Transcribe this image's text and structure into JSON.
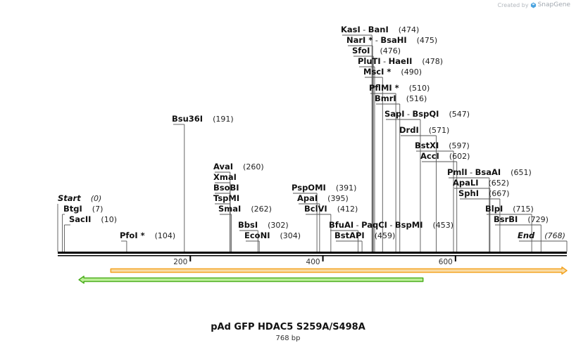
{
  "credit": {
    "prefix": "Created by",
    "brand": "SnapGene"
  },
  "plasmid": {
    "name": "pAd GFP HDAC5 S259A/S498A",
    "length_label": "768 bp",
    "length": 768
  },
  "axis": {
    "ticks": [
      {
        "value": 200,
        "label": "200"
      },
      {
        "value": 400,
        "label": "400"
      },
      {
        "value": 600,
        "label": "600"
      }
    ]
  },
  "features": [
    {
      "name": "orange-feature",
      "start": 80,
      "end": 768,
      "direction": "forward",
      "color": "#f3a320",
      "fill": "#f9dca7"
    },
    {
      "name": "green-feature",
      "start": 32,
      "end": 551,
      "direction": "reverse",
      "color": "#4cae1e",
      "fill": "#bff09a"
    }
  ],
  "sites": [
    {
      "names": [
        "Start"
      ],
      "pos": "(0)",
      "bp": 0,
      "row": 0,
      "italic": true
    },
    {
      "names": [
        "BtgI"
      ],
      "pos": "(7)",
      "bp": 7,
      "row": 1
    },
    {
      "names": [
        "SacII"
      ],
      "pos": "(10)",
      "bp": 10,
      "row": 2
    },
    {
      "names": [
        "PfoI *"
      ],
      "pos": "(104)",
      "bp": 104,
      "row": 3
    },
    {
      "names": [
        "Bsu36I"
      ],
      "pos": "(191)",
      "bp": 191,
      "row": 4
    },
    {
      "names": [
        "AvaI"
      ],
      "pos": "(260)",
      "bp": 260,
      "row": 5
    },
    {
      "names": [
        "XmaI"
      ],
      "pos": "",
      "bp": 260,
      "row": 6
    },
    {
      "names": [
        "BsoBI"
      ],
      "pos": "",
      "bp": 260,
      "row": 7
    },
    {
      "names": [
        "TspMI"
      ],
      "pos": "",
      "bp": 260,
      "row": 8
    },
    {
      "names": [
        "SmaI"
      ],
      "pos": "(262)",
      "bp": 262,
      "row": 9
    },
    {
      "names": [
        "BbsI"
      ],
      "pos": "(302)",
      "bp": 302,
      "row": 10
    },
    {
      "names": [
        "EcoNI"
      ],
      "pos": "(304)",
      "bp": 304,
      "row": 11
    },
    {
      "names": [
        "PspOMI"
      ],
      "pos": "(391)",
      "bp": 391,
      "row": 12
    },
    {
      "names": [
        "ApaI"
      ],
      "pos": "(395)",
      "bp": 395,
      "row": 13
    },
    {
      "names": [
        "BclVI"
      ],
      "pos": "(412)",
      "bp": 412,
      "row": 14
    },
    {
      "names": [
        "BfuAI",
        "PaqCI",
        "BspMI"
      ],
      "pos": "(453)",
      "bp": 453,
      "row": 15
    },
    {
      "names": [
        "BstAPI"
      ],
      "pos": "(459)",
      "bp": 459,
      "row": 16
    },
    {
      "names": [
        "KasI",
        "BanI"
      ],
      "pos": "(474)",
      "bp": 474,
      "row": 17
    },
    {
      "names": [
        "NarI *",
        "BsaHI"
      ],
      "pos": "(475)",
      "bp": 475,
      "row": 18
    },
    {
      "names": [
        "SfoI"
      ],
      "pos": "(476)",
      "bp": 476,
      "row": 19
    },
    {
      "names": [
        "PluTI",
        "HaeII"
      ],
      "pos": "(478)",
      "bp": 478,
      "row": 20
    },
    {
      "names": [
        "MscI *"
      ],
      "pos": "(490)",
      "bp": 490,
      "row": 21
    },
    {
      "names": [
        "PflMI *"
      ],
      "pos": "(510)",
      "bp": 510,
      "row": 22
    },
    {
      "names": [
        "BmrI"
      ],
      "pos": "(516)",
      "bp": 516,
      "row": 23
    },
    {
      "names": [
        "SapI",
        "BspQI"
      ],
      "pos": "(547)",
      "bp": 547,
      "row": 24
    },
    {
      "names": [
        "DrdI"
      ],
      "pos": "(571)",
      "bp": 571,
      "row": 25
    },
    {
      "names": [
        "BstXI"
      ],
      "pos": "(597)",
      "bp": 597,
      "row": 26
    },
    {
      "names": [
        "AccI"
      ],
      "pos": "(602)",
      "bp": 602,
      "row": 27
    },
    {
      "names": [
        "PmlI",
        "BsaAI"
      ],
      "pos": "(651)",
      "bp": 651,
      "row": 28
    },
    {
      "names": [
        "ApaLI"
      ],
      "pos": "(652)",
      "bp": 652,
      "row": 29
    },
    {
      "names": [
        "SphI"
      ],
      "pos": "(667)",
      "bp": 667,
      "row": 30
    },
    {
      "names": [
        "BlpI"
      ],
      "pos": "(715)",
      "bp": 715,
      "row": 31
    },
    {
      "names": [
        "BsrBI"
      ],
      "pos": "(729)",
      "bp": 729,
      "row": 32
    },
    {
      "names": [
        "End"
      ],
      "pos": "(768)",
      "bp": 768,
      "row": 33,
      "italic": true
    }
  ]
}
